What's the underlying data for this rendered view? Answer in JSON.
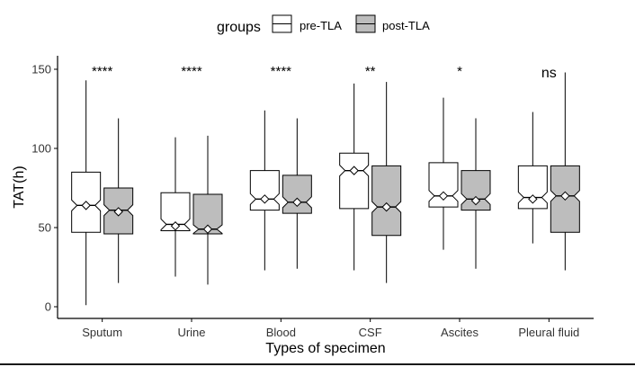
{
  "chart_data": {
    "type": "box",
    "title": "",
    "xlabel": "Types of specimen",
    "ylabel": "TAT(h)",
    "ylim": [
      -5,
      158
    ],
    "yticks": [
      0,
      50,
      100,
      150
    ],
    "legend": {
      "title": "groups",
      "placement": "top",
      "entries": [
        "pre-TLA",
        "post-TLA"
      ]
    },
    "categories": [
      "Sputum",
      "Urine",
      "Blood",
      "CSF",
      "Ascites",
      "Pleural fluid"
    ],
    "significance": [
      "****",
      "****",
      "****",
      "**",
      "*",
      "ns"
    ],
    "notched": true,
    "series": [
      {
        "name": "pre-TLA",
        "fill": "#ffffff",
        "boxes": [
          {
            "min": 1,
            "q1": 47,
            "median": 64,
            "q3": 85,
            "max": 143,
            "mean": 64
          },
          {
            "min": 19,
            "q1": 48,
            "median": 52,
            "q3": 72,
            "max": 107,
            "mean": 51
          },
          {
            "min": 23,
            "q1": 61,
            "median": 68,
            "q3": 86,
            "max": 124,
            "mean": 68
          },
          {
            "min": 23,
            "q1": 62,
            "median": 86,
            "q3": 97,
            "max": 141,
            "mean": 86
          },
          {
            "min": 36,
            "q1": 63,
            "median": 70,
            "q3": 91,
            "max": 132,
            "mean": 70
          },
          {
            "min": 40,
            "q1": 62,
            "median": 69,
            "q3": 89,
            "max": 123,
            "mean": 68
          }
        ]
      },
      {
        "name": "post-TLA",
        "fill": "#bdbdbd",
        "boxes": [
          {
            "min": 15,
            "q1": 46,
            "median": 61,
            "q3": 75,
            "max": 119,
            "mean": 60
          },
          {
            "min": 14,
            "q1": 46,
            "median": 49,
            "q3": 71,
            "max": 108,
            "mean": 49
          },
          {
            "min": 24,
            "q1": 59,
            "median": 66,
            "q3": 83,
            "max": 119,
            "mean": 66
          },
          {
            "min": 15,
            "q1": 45,
            "median": 63,
            "q3": 89,
            "max": 142,
            "mean": 63
          },
          {
            "min": 24,
            "q1": 61,
            "median": 68,
            "q3": 86,
            "max": 119,
            "mean": 67
          },
          {
            "min": 23,
            "q1": 47,
            "median": 70,
            "q3": 89,
            "max": 148,
            "mean": 70
          }
        ]
      }
    ]
  }
}
